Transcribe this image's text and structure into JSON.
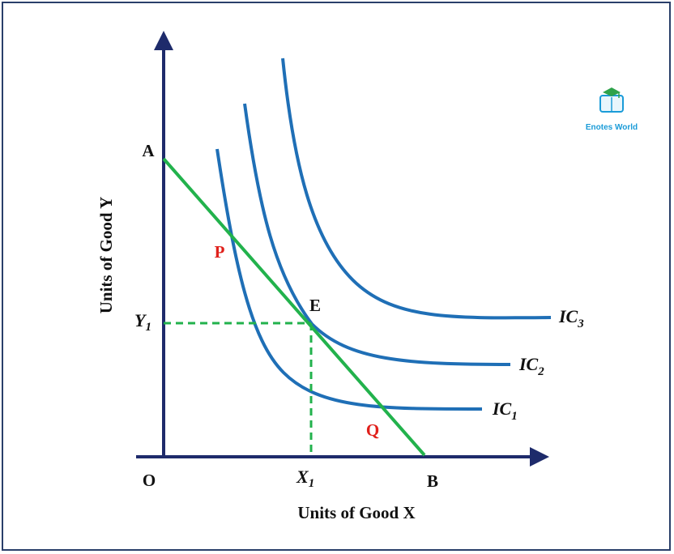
{
  "figure": {
    "x_axis_label": "Units of Good X",
    "y_axis_label": "Units of Good Y",
    "origin_label": "O",
    "budget_line": {
      "start_label": "A",
      "end_label": "B"
    },
    "points": {
      "tangency": "E",
      "intersection_upper": "P",
      "intersection_lower": "Q"
    },
    "tick_labels": {
      "x": {
        "main": "X",
        "sub": "1"
      },
      "y": {
        "main": "Y",
        "sub": "1"
      }
    },
    "curves": [
      {
        "main": "IC",
        "sub": "1"
      },
      {
        "main": "IC",
        "sub": "2"
      },
      {
        "main": "IC",
        "sub": "3"
      }
    ],
    "logo_text": "Enotes World"
  },
  "colors": {
    "axis": "#1e2b6b",
    "indifference_curve": "#1f6fb6",
    "budget_line": "#22b24c",
    "guide_line": "#22b24c",
    "point_label": "#e0201b",
    "frame": "#2a3f6a"
  }
}
